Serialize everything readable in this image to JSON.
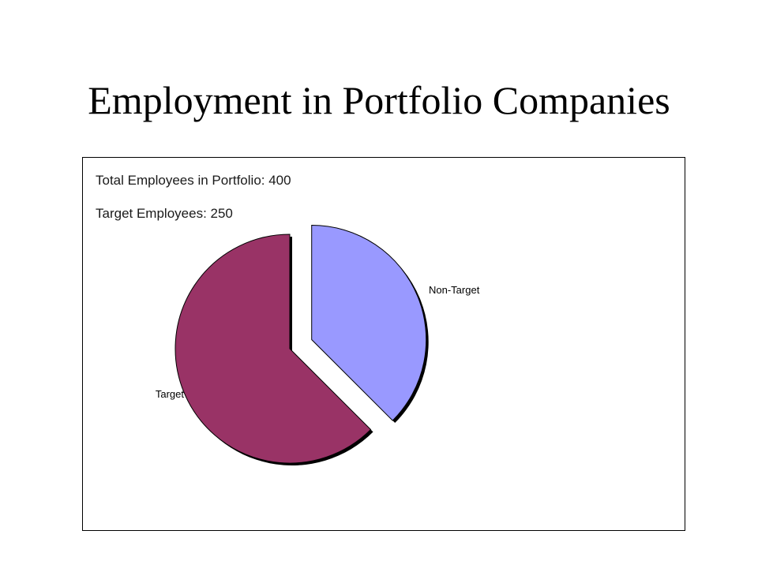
{
  "title": "Employment in Portfolio Companies",
  "chart_data": {
    "type": "pie",
    "annotations": [
      "Total Employees in Portfolio: 400",
      "Target Employees: 250"
    ],
    "slices": [
      {
        "label": "Non-Target",
        "value": 150,
        "color": "#9999ff",
        "exploded": true
      },
      {
        "label": "Target",
        "value": 250,
        "color": "#993366",
        "exploded": false
      }
    ],
    "legend": "none"
  }
}
